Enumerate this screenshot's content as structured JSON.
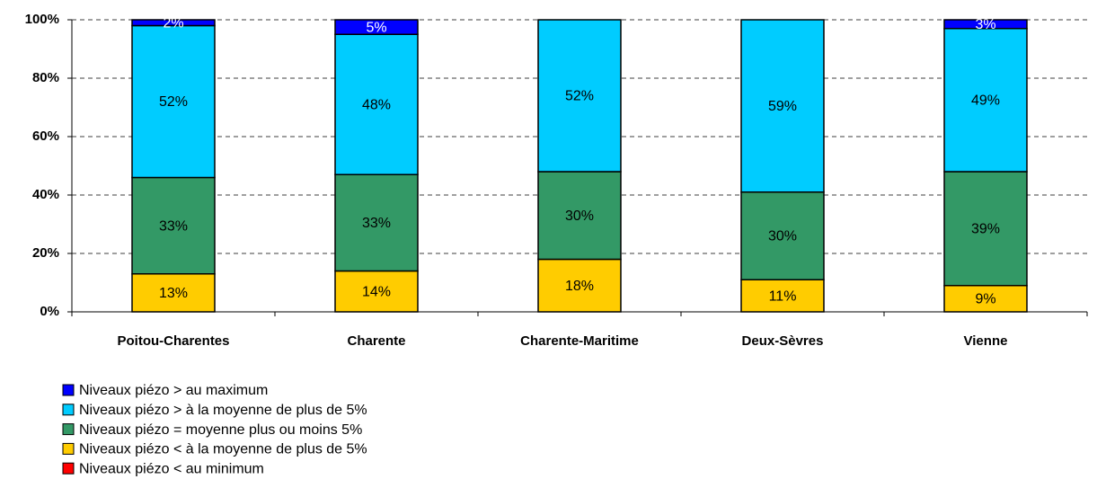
{
  "chart_data": {
    "type": "stacked_bar",
    "categories": [
      "Poitou-Charentes",
      "Charente",
      "Charente-Maritime",
      "Deux-Sèvres",
      "Vienne"
    ],
    "series": [
      {
        "name": "Niveaux piézo < au minimum",
        "color": "#ff0000",
        "values": [
          0,
          0,
          0,
          0,
          0
        ]
      },
      {
        "name": "Niveaux piézo < à la moyenne de plus de 5%",
        "color": "#ffcc00",
        "values": [
          13,
          14,
          18,
          11,
          9
        ],
        "value_labels": [
          "13%",
          "14%",
          "18%",
          "11%",
          "9%"
        ]
      },
      {
        "name": "Niveaux piézo = moyenne plus ou moins 5%",
        "color": "#339966",
        "values": [
          33,
          33,
          30,
          30,
          39
        ],
        "value_labels": [
          "33%",
          "33%",
          "30%",
          "30%",
          "39%"
        ]
      },
      {
        "name": "Niveaux piézo > à la moyenne de plus de 5%",
        "color": "#00ccff",
        "values": [
          52,
          48,
          52,
          59,
          49
        ],
        "value_labels": [
          "52%",
          "48%",
          "52%",
          "59%",
          "49%"
        ]
      },
      {
        "name": "Niveaux piézo > au maximum",
        "color": "#0000ff",
        "values": [
          2,
          5,
          0,
          0,
          3
        ],
        "value_labels": [
          "2%",
          "5%",
          null,
          null,
          "3%"
        ]
      }
    ],
    "ylim": [
      0,
      100
    ],
    "yticks": [
      {
        "value": 0,
        "label": "0%"
      },
      {
        "value": 20,
        "label": "20%"
      },
      {
        "value": 40,
        "label": "40%"
      },
      {
        "value": 60,
        "label": "60%"
      },
      {
        "value": 80,
        "label": "80%"
      },
      {
        "value": 100,
        "label": "100%"
      }
    ],
    "grid": true,
    "legend": "bottom-left"
  }
}
